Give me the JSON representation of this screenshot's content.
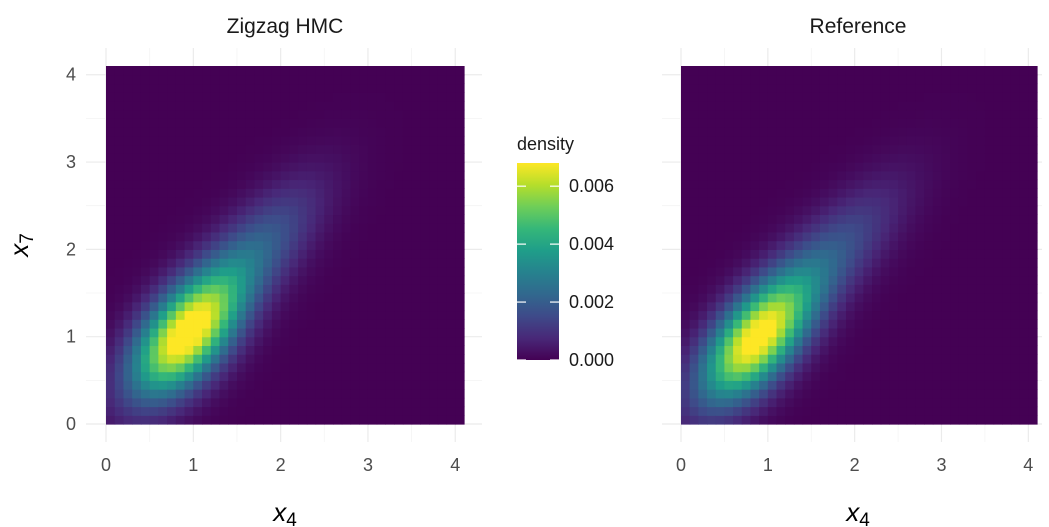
{
  "chart_data": [
    {
      "type": "heatmap",
      "title": "Zigzag HMC",
      "xlabel": "x",
      "xlabel_sub": "4",
      "ylabel": "x",
      "ylabel_sub": "7",
      "xlim": [
        0,
        4.1
      ],
      "ylim": [
        0,
        4.1
      ],
      "x_ticks": [
        "0",
        "1",
        "2",
        "3",
        "4"
      ],
      "y_ticks": [
        "0",
        "1",
        "2",
        "3",
        "4"
      ],
      "grid": true,
      "density_model": {
        "components": [
          {
            "weight": 1.0,
            "mean_x": 0.9,
            "mean_y": 1.0,
            "sd_x": 0.42,
            "sd_y": 0.47,
            "rho": 0.55,
            "peak": 0.0068
          },
          {
            "weight": 0.32,
            "mean_x": 1.6,
            "mean_y": 1.85,
            "sd_x": 0.55,
            "sd_y": 0.6,
            "rho": 0.75,
            "peak": 0.0068
          }
        ],
        "tail_offset": 0.0
      }
    },
    {
      "type": "heatmap",
      "title": "Reference",
      "xlabel": "x",
      "xlabel_sub": "4",
      "ylabel": "",
      "ylabel_sub": "",
      "xlim": [
        0,
        4.1
      ],
      "ylim": [
        0,
        4.1
      ],
      "x_ticks": [
        "0",
        "1",
        "2",
        "3",
        "4"
      ],
      "y_ticks": [],
      "grid": true,
      "density_model": {
        "components": [
          {
            "weight": 1.0,
            "mean_x": 0.85,
            "mean_y": 0.95,
            "sd_x": 0.43,
            "sd_y": 0.48,
            "rho": 0.6,
            "peak": 0.0066
          },
          {
            "weight": 0.28,
            "mean_x": 1.6,
            "mean_y": 1.8,
            "sd_x": 0.6,
            "sd_y": 0.62,
            "rho": 0.78,
            "peak": 0.0066
          }
        ],
        "tail_offset": 0.0
      }
    }
  ],
  "legend": {
    "title": "density",
    "min": 0.0,
    "max": 0.0068,
    "ticks": [
      {
        "value": 0.0,
        "label": "0.000"
      },
      {
        "value": 0.002,
        "label": "0.002"
      },
      {
        "value": 0.004,
        "label": "0.004"
      },
      {
        "value": 0.006,
        "label": "0.006"
      }
    ],
    "colormap": "viridis",
    "colors": [
      "#440154",
      "#482878",
      "#3e4a89",
      "#31688e",
      "#26828e",
      "#1f9e89",
      "#35b779",
      "#6ece58",
      "#b5de2b",
      "#fde725"
    ]
  }
}
